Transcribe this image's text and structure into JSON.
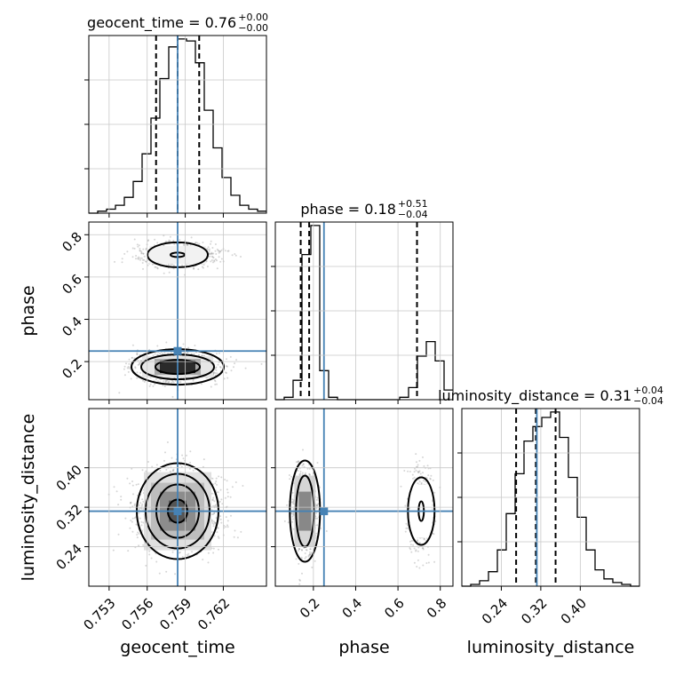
{
  "chart_data": {
    "type": "corner",
    "parameters": [
      "geocent_time",
      "phase",
      "luminosity_distance"
    ],
    "axis_labels": [
      "geocent_time",
      "phase",
      "luminosity_distance"
    ],
    "truths": [
      0.7584,
      0.25,
      0.312
    ],
    "truth_color": "#4682b4",
    "ranges": [
      [
        0.7514,
        0.7654
      ],
      [
        0.02,
        0.86
      ],
      [
        0.16,
        0.52
      ]
    ],
    "ticks": {
      "geocent_time": {
        "values": [
          0.753,
          0.756,
          0.759,
          0.762
        ],
        "labels": [
          "0.753",
          "0.756",
          "0.759",
          "0.762"
        ]
      },
      "phase": {
        "values": [
          0.2,
          0.4,
          0.6,
          0.8
        ],
        "labels": [
          "0.2",
          "0.4",
          "0.6",
          "0.8"
        ]
      },
      "luminosity_distance": {
        "values": [
          0.24,
          0.32,
          0.4
        ],
        "labels": [
          "0.24",
          "0.32",
          "0.40"
        ]
      }
    },
    "titles": [
      {
        "param": "geocent_time",
        "median": "0.76",
        "plus": "+0.00",
        "minus": "−0.00"
      },
      {
        "param": "phase",
        "median": "0.18",
        "plus": "+0.51",
        "minus": "−0.04"
      },
      {
        "param": "luminosity_distance",
        "median": "0.31",
        "plus": "+0.04",
        "minus": "−0.04"
      }
    ],
    "quantiles": {
      "geocent_time": [
        0.7567,
        0.7584,
        0.7601
      ],
      "phase": [
        0.14,
        0.18,
        0.69
      ],
      "luminosity_distance": [
        0.27,
        0.31,
        0.35
      ]
    },
    "histograms": {
      "geocent_time": {
        "edges_start": 0.7514,
        "bin_width": 0.0007,
        "counts": [
          0,
          1,
          2,
          4,
          8,
          16,
          30,
          48,
          68,
          84,
          88,
          87,
          76,
          52,
          33,
          18,
          9,
          4,
          2,
          1
        ]
      },
      "phase": {
        "edges_start": 0.02,
        "bin_width": 0.042,
        "counts": [
          0,
          1,
          8,
          60,
          72,
          12,
          1,
          0,
          0,
          0,
          0,
          0,
          0,
          0,
          1,
          5,
          18,
          24,
          16,
          4
        ]
      },
      "luminosity_distance": {
        "edges_start": 0.16,
        "bin_width": 0.018,
        "counts": [
          0,
          1,
          3,
          8,
          20,
          40,
          62,
          80,
          88,
          93,
          96,
          82,
          60,
          38,
          20,
          9,
          4,
          2,
          1,
          0
        ]
      }
    },
    "grid": true
  }
}
